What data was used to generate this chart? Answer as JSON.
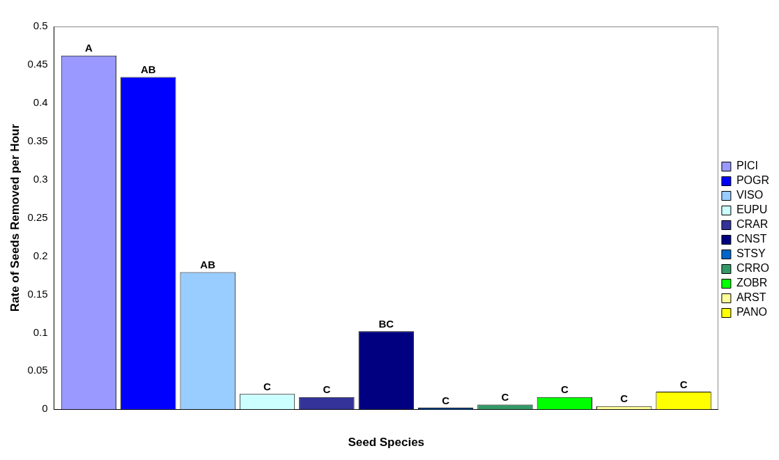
{
  "chart_data": {
    "type": "bar",
    "xlabel": "Seed Species",
    "ylabel": "Rate of Seeds Removed per Hour",
    "categories": [
      null
    ],
    "series": [
      {
        "name": "PICI",
        "color": "#9999ff",
        "values": [
          0.462
        ],
        "value_labels": [
          "A"
        ]
      },
      {
        "name": "POGR",
        "color": "#0000ff",
        "values": [
          0.434
        ],
        "value_labels": [
          "AB"
        ]
      },
      {
        "name": "VISO",
        "color": "#99ccff",
        "values": [
          0.179
        ],
        "value_labels": [
          "AB"
        ]
      },
      {
        "name": "EUPU",
        "color": "#ccffff",
        "values": [
          0.02
        ],
        "value_labels": [
          "C"
        ]
      },
      {
        "name": "CRAR",
        "color": "#333399",
        "values": [
          0.016
        ],
        "value_labels": [
          "C"
        ]
      },
      {
        "name": "CNST",
        "color": "#000080",
        "values": [
          0.102
        ],
        "value_labels": [
          "BC"
        ]
      },
      {
        "name": "STSY",
        "color": "#0066cc",
        "values": [
          0.002
        ],
        "value_labels": [
          "C"
        ]
      },
      {
        "name": "CRRO",
        "color": "#339966",
        "values": [
          0.006
        ],
        "value_labels": [
          "C"
        ]
      },
      {
        "name": "ZOBR",
        "color": "#00ff00",
        "values": [
          0.016
        ],
        "value_labels": [
          "C"
        ]
      },
      {
        "name": "ARST",
        "color": "#ffff99",
        "values": [
          0.004
        ],
        "value_labels": [
          "C"
        ]
      },
      {
        "name": "PANO",
        "color": "#ffff00",
        "values": [
          0.023
        ],
        "value_labels": [
          "C"
        ]
      }
    ],
    "ylim": [
      0,
      0.5
    ],
    "yticks": [
      0,
      0.05,
      0.1,
      0.15,
      0.2,
      0.25,
      0.3,
      0.35,
      0.4,
      0.45,
      0.5
    ],
    "grid": false,
    "legend": "right"
  }
}
